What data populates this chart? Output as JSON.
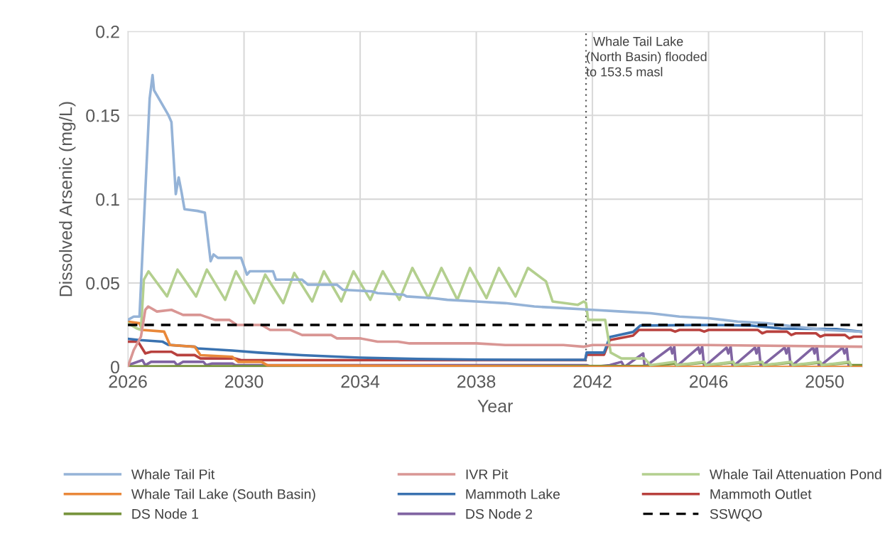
{
  "chart_data": {
    "type": "line",
    "xlabel": "Year",
    "ylabel": "Dissolved Arsenic (mg/L)",
    "xlim": [
      2026,
      2051.3
    ],
    "xticks": [
      2026,
      2030,
      2034,
      2038,
      2042,
      2046,
      2050
    ],
    "ylim": [
      0,
      0.2
    ],
    "yticks": [
      0,
      0.05,
      0.1,
      0.15,
      0.2
    ],
    "grid": true,
    "legend": "bottom",
    "marker": "none",
    "line_style": "solid",
    "series": [
      {
        "name": "Whale Tail Pit",
        "color": "#95b3d7",
        "x": [
          2026,
          2026.2,
          2026.4,
          2026.75,
          2026.85,
          2026.9,
          2027.0,
          2027.4,
          2027.5,
          2027.65,
          2027.75,
          2027.85,
          2027.95,
          2028.4,
          2028.65,
          2028.85,
          2028.95,
          2029.1,
          2029.9,
          2030.1,
          2030.2,
          2031.0,
          2031.1,
          2032.0,
          2032.2,
          2033.2,
          2033.4,
          2034.4,
          2034.6,
          2035.5,
          2035.6,
          2036.5,
          2037,
          2038,
          2039,
          2040,
          2041,
          2042,
          2043,
          2044,
          2045,
          2046,
          2047,
          2048,
          2049,
          2050,
          2051.25
        ],
        "values": [
          0.028,
          0.03,
          0.03,
          0.16,
          0.174,
          0.165,
          0.162,
          0.15,
          0.146,
          0.103,
          0.113,
          0.104,
          0.094,
          0.093,
          0.092,
          0.063,
          0.067,
          0.065,
          0.065,
          0.055,
          0.057,
          0.057,
          0.052,
          0.052,
          0.049,
          0.049,
          0.046,
          0.045,
          0.044,
          0.043,
          0.042,
          0.041,
          0.04,
          0.039,
          0.038,
          0.036,
          0.035,
          0.034,
          0.033,
          0.032,
          0.03,
          0.029,
          0.027,
          0.026,
          0.024,
          0.022,
          0.021
        ]
      },
      {
        "name": "IVR Pit",
        "color": "#d99694",
        "x": [
          2026,
          2026.2,
          2026.45,
          2026.6,
          2026.7,
          2027.0,
          2027.5,
          2027.9,
          2028.5,
          2029.0,
          2029.5,
          2029.75,
          2030.6,
          2030.9,
          2031.6,
          2032.0,
          2033.0,
          2033.2,
          2034,
          2034.6,
          2035.3,
          2035.7,
          2037,
          2038,
          2039,
          2040,
          2041,
          2041.7,
          2042,
          2046,
          2051.25
        ],
        "values": [
          0.0,
          0.01,
          0.018,
          0.034,
          0.036,
          0.033,
          0.034,
          0.031,
          0.031,
          0.028,
          0.028,
          0.025,
          0.025,
          0.022,
          0.022,
          0.019,
          0.019,
          0.017,
          0.017,
          0.015,
          0.015,
          0.014,
          0.014,
          0.014,
          0.013,
          0.013,
          0.013,
          0.012,
          0.013,
          0.013,
          0.012
        ]
      },
      {
        "name": "Whale Tail Attenuation Pond",
        "color": "#b3cf8e",
        "x": [
          2026,
          2026.3,
          2026.45,
          2026.55,
          2026.71,
          2027.35,
          2027.71,
          2028.35,
          2028.72,
          2029.35,
          2029.72,
          2030.35,
          2030.73,
          2031.35,
          2031.73,
          2032.35,
          2032.75,
          2033.35,
          2033.77,
          2034.35,
          2034.78,
          2035.35,
          2035.8,
          2036.35,
          2036.8,
          2037.35,
          2037.78,
          2038.35,
          2038.78,
          2039.35,
          2039.78,
          2040.4,
          2040.63,
          2041.5,
          2041.7,
          2041.78,
          2041.85,
          2042.44,
          2042.63,
          2043.0,
          2043.8,
          2044.0,
          2044.85,
          2044.9,
          2045.85,
          2045.9,
          2046.85,
          2046.9,
          2047.85,
          2047.9,
          2048.85,
          2048.9,
          2049.85,
          2049.9,
          2050.85,
          2050.9
        ],
        "values": [
          0.026,
          0.023,
          0.022,
          0.052,
          0.057,
          0.042,
          0.058,
          0.042,
          0.058,
          0.04,
          0.057,
          0.038,
          0.055,
          0.038,
          0.056,
          0.039,
          0.057,
          0.039,
          0.057,
          0.04,
          0.057,
          0.04,
          0.059,
          0.041,
          0.059,
          0.04,
          0.059,
          0.041,
          0.059,
          0.042,
          0.059,
          0.051,
          0.039,
          0.037,
          0.039,
          0.038,
          0.028,
          0.028,
          0.0085,
          0.005,
          0.005,
          0.001,
          0.003,
          0.001,
          0.003,
          0.001,
          0.003,
          0.001,
          0.003,
          0.001,
          0.003,
          0.001,
          0.003,
          0.001,
          0.003,
          0.001
        ]
      },
      {
        "name": "Whale Tail Lake (South Basin)",
        "color": "#e9883a",
        "x": [
          2026,
          2026.4,
          2026.5,
          2027.25,
          2027.45,
          2028.3,
          2028.5,
          2029.6,
          2029.8,
          2030.6,
          2030.8,
          2042,
          2051.25
        ],
        "values": [
          0.027,
          0.026,
          0.022,
          0.021,
          0.013,
          0.012,
          0.007,
          0.006,
          0.003,
          0.003,
          0.001,
          0,
          0
        ]
      },
      {
        "name": "Mammoth Lake",
        "color": "#3a72b0",
        "x": [
          2026,
          2026.4,
          2027.2,
          2027.4,
          2028.3,
          2028.4,
          2029.6,
          2030.5,
          2032,
          2034,
          2036,
          2038,
          2040,
          2041.75,
          2041.8,
          2042.4,
          2042.6,
          2043.4,
          2043.65,
          2046,
          2047.5,
          2048.5,
          2050.4,
          2051.25
        ],
        "values": [
          0.0167,
          0.016,
          0.015,
          0.0131,
          0.012,
          0.011,
          0.0097,
          0.0085,
          0.007,
          0.0055,
          0.0047,
          0.0043,
          0.0042,
          0.0042,
          0.0085,
          0.0085,
          0.0178,
          0.0208,
          0.0246,
          0.025,
          0.0246,
          0.0229,
          0.0225,
          0.021
        ]
      },
      {
        "name": "Mammoth Outlet",
        "color": "#b8413e",
        "x": [
          2026,
          2026.35,
          2026.6,
          2026.8,
          2027.5,
          2027.7,
          2028.3,
          2028.5,
          2029.7,
          2029.9,
          2032,
          2035,
          2038,
          2041.75,
          2041.8,
          2042.4,
          2042.6,
          2043.4,
          2043.6,
          2044.7,
          2044.85,
          2045.0,
          2045.7,
          2045.85,
          2046.0,
          2047.7,
          2047.85,
          2048.0,
          2048.7,
          2048.85,
          2049.0,
          2049.7,
          2049.85,
          2050.0,
          2050.7,
          2050.85,
          2051.0,
          2051.25
        ],
        "values": [
          0.015,
          0.015,
          0.008,
          0.009,
          0.009,
          0.007,
          0.007,
          0.005,
          0.005,
          0.004,
          0.004,
          0.004,
          0.004,
          0.004,
          0.0072,
          0.0072,
          0.016,
          0.0186,
          0.022,
          0.022,
          0.021,
          0.022,
          0.022,
          0.021,
          0.022,
          0.022,
          0.02,
          0.021,
          0.021,
          0.019,
          0.02,
          0.02,
          0.018,
          0.019,
          0.019,
          0.017,
          0.018,
          0.018
        ]
      },
      {
        "name": "DS Node 1",
        "color": "#77933c",
        "x": [
          2026,
          2043,
          2044.0,
          2044.85,
          2044.9,
          2045.85,
          2045.9,
          2046.85,
          2046.9,
          2047.85,
          2047.9,
          2048.85,
          2048.9,
          2049.85,
          2049.9,
          2050.85,
          2050.9,
          2051.25
        ],
        "values": [
          0.0003,
          0.0005,
          0.0005,
          0.002,
          0.001,
          0.0025,
          0.001,
          0.0025,
          0.001,
          0.0025,
          0.001,
          0.0025,
          0.001,
          0.0025,
          0.001,
          0.0025,
          0.001,
          0.001
        ]
      },
      {
        "name": "DS Node 2",
        "color": "#8064a2",
        "x": [
          2026,
          2026.5,
          2026.6,
          2026.8,
          2027.6,
          2027.7,
          2027.9,
          2028.6,
          2028.7,
          2028.9,
          2029.6,
          2029.7,
          2030.0,
          2035,
          2041.8,
          2042.0,
          2042.6,
          2043.0,
          2043.1,
          2043.75,
          2043.8,
          2044.7,
          2044.75,
          2044.82,
          2044.88,
          2045.65,
          2045.7,
          2045.78,
          2045.85,
          2046.62,
          2046.68,
          2046.76,
          2046.83,
          2047.6,
          2047.65,
          2047.73,
          2047.8,
          2048.62,
          2048.68,
          2048.76,
          2048.83,
          2049.6,
          2049.65,
          2049.73,
          2049.8,
          2050.62,
          2050.68,
          2050.76,
          2050.83
        ],
        "values": [
          0.001,
          0.004,
          0.001,
          0.003,
          0.003,
          0.001,
          0.003,
          0.003,
          0.001,
          0.002,
          0.002,
          0.001,
          0.001,
          0.001,
          0.001,
          0,
          0.001,
          0.003,
          0.0,
          0.008,
          0.0,
          0.0115,
          0.008,
          0.012,
          0.0,
          0.0115,
          0.008,
          0.012,
          0.0,
          0.0115,
          0.008,
          0.012,
          0.0,
          0.0115,
          0.008,
          0.012,
          0.0,
          0.0115,
          0.008,
          0.012,
          0.0,
          0.0115,
          0.008,
          0.012,
          0.0,
          0.0115,
          0.008,
          0.011,
          0.0
        ]
      }
    ],
    "ref_lines": [
      {
        "axis": "y",
        "value": 0.025,
        "label": "SSWQO",
        "color": "#000000",
        "line_style": "dashed"
      },
      {
        "axis": "x",
        "value": 2041.78,
        "label": "Whale Tail Lake\n(North Basin) flooded\nto 153.5 masl",
        "color": "#595959",
        "line_style": "dotted"
      }
    ]
  }
}
